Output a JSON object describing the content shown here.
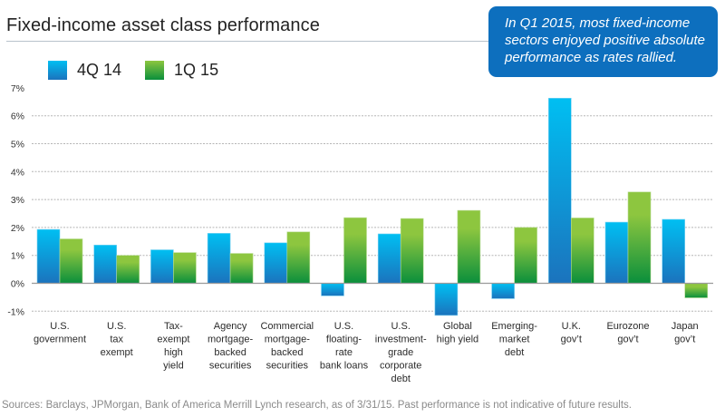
{
  "header": {
    "title": "Fixed-income asset class performance"
  },
  "callout": {
    "text": "In Q1 2015, most fixed-income sectors enjoyed positive absolute performance as rates rallied."
  },
  "footer": {
    "sources": "Sources: Barclays, JPMorgan, Bank of America Merrill Lynch research, as of 3/31/15. Past performance is not indicative of future results."
  },
  "colors": {
    "series_1_top": "#00bff2",
    "series_1_bottom": "#1b73bd",
    "series_2_top": "#8dc63f",
    "series_2_bottom": "#0a8f3c",
    "callout_bg": "#0d6fbe"
  },
  "chart_data": {
    "type": "bar",
    "title": "Fixed-income asset class performance",
    "xlabel": "",
    "ylabel": "",
    "ylim": [
      -1,
      7
    ],
    "yticks": [
      -1,
      0,
      1,
      2,
      3,
      4,
      5,
      6,
      7
    ],
    "ytick_labels": [
      "-1%",
      "0%",
      "1%",
      "2%",
      "3%",
      "4%",
      "5%",
      "6%",
      "7%"
    ],
    "grid": true,
    "legend_position": "top-left",
    "categories": [
      [
        "U.S.",
        "government"
      ],
      [
        "U.S.",
        "tax",
        "exempt"
      ],
      [
        "Tax-",
        "exempt",
        "high",
        "yield"
      ],
      [
        "Agency",
        "mortgage-",
        "backed",
        "securities"
      ],
      [
        "Commercial",
        "mortgage-",
        "backed",
        "securities"
      ],
      [
        "U.S.",
        "floating-",
        "rate",
        "bank loans"
      ],
      [
        "U.S.",
        "investment-",
        "grade",
        "corporate",
        "debt"
      ],
      [
        "Global",
        "high yield"
      ],
      [
        "Emerging-",
        "market",
        "debt"
      ],
      [
        "U.K.",
        "gov’t"
      ],
      [
        "Eurozone",
        "gov’t"
      ],
      [
        "Japan",
        "gov’t"
      ]
    ],
    "series": [
      {
        "name": "4Q 14",
        "values": [
          1.93,
          1.37,
          1.2,
          1.79,
          1.45,
          -0.45,
          1.77,
          -1.15,
          -0.55,
          6.63,
          2.19,
          2.29
        ]
      },
      {
        "name": "1Q 15",
        "values": [
          1.59,
          1.0,
          1.1,
          1.07,
          1.84,
          2.35,
          2.32,
          2.61,
          2.0,
          2.34,
          3.27,
          -0.52
        ]
      }
    ]
  }
}
